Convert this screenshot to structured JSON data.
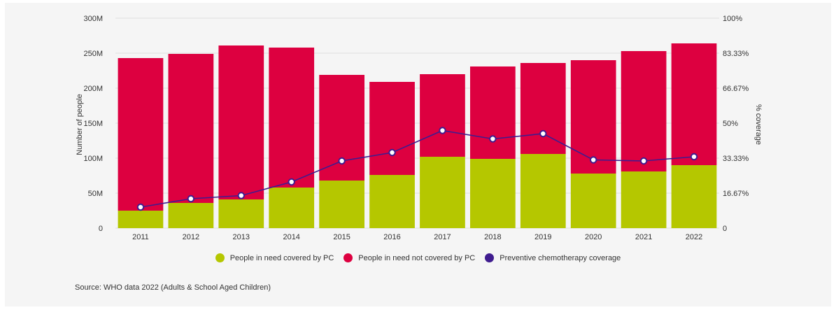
{
  "chart_data": {
    "type": "bar",
    "stacked": true,
    "categories": [
      "2011",
      "2012",
      "2013",
      "2014",
      "2015",
      "2016",
      "2017",
      "2018",
      "2019",
      "2020",
      "2021",
      "2022"
    ],
    "series": [
      {
        "name": "People in need covered by PC",
        "color": "#b5c700",
        "values": [
          25,
          36,
          41,
          58,
          68,
          76,
          102,
          99,
          106,
          78,
          81,
          90
        ]
      },
      {
        "name": "People in need not covered by PC",
        "color": "#dd0040",
        "values": [
          218,
          213,
          220,
          200,
          151,
          133,
          118,
          132,
          130,
          162,
          172,
          174
        ]
      }
    ],
    "line_series": {
      "name": "Preventive chemotherapy coverage",
      "color": "#3f1c8f",
      "values": [
        10,
        14,
        15.5,
        22,
        32,
        36,
        46.5,
        42.5,
        45,
        32.5,
        32,
        34
      ]
    },
    "ylabel": "Number of people",
    "y2label": "% coverage",
    "ylim": [
      0,
      300
    ],
    "y2lim": [
      0,
      100
    ],
    "y_ticks": [
      0,
      50,
      100,
      150,
      200,
      250,
      300
    ],
    "y_tick_labels": [
      "0",
      "50M",
      "100M",
      "150M",
      "200M",
      "250M",
      "300M"
    ],
    "y2_ticks": [
      0,
      16.67,
      33.33,
      50,
      66.67,
      83.33,
      100
    ],
    "y2_tick_labels": [
      "0",
      "16.67%",
      "33.33%",
      "50%",
      "66.67%",
      "83.33%",
      "100%"
    ],
    "source": "Source: WHO data 2022 (Adults & School Aged Children)",
    "gridlines": true,
    "legend_position": "bottom"
  }
}
